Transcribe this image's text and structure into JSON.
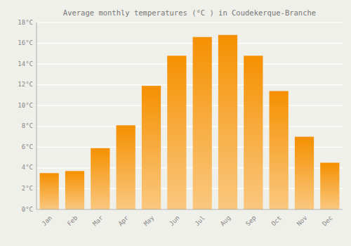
{
  "chart_data": {
    "type": "bar",
    "title": "Average monthly temperatures (°C ) in Coudekerque-Branche",
    "categories": [
      "Jan",
      "Feb",
      "Mar",
      "Apr",
      "May",
      "Jun",
      "Jul",
      "Aug",
      "Sep",
      "Oct",
      "Nov",
      "Dec"
    ],
    "values": [
      3.5,
      3.7,
      5.9,
      8.1,
      11.9,
      14.8,
      16.6,
      16.8,
      14.8,
      11.4,
      7.0,
      4.5
    ],
    "color": "#F59000",
    "ylim": [
      0,
      18
    ],
    "yticks": [
      {
        "value": 0,
        "label": "0°C"
      },
      {
        "value": 2,
        "label": "2°C"
      },
      {
        "value": 4,
        "label": "4°C"
      },
      {
        "value": 6,
        "label": "6°C"
      },
      {
        "value": 8,
        "label": "8°C"
      },
      {
        "value": 10,
        "label": "10°C"
      },
      {
        "value": 12,
        "label": "12°C"
      },
      {
        "value": 14,
        "label": "14°C"
      },
      {
        "value": 16,
        "label": "16°C"
      },
      {
        "value": 18,
        "label": "18°C"
      }
    ],
    "grid": true
  }
}
